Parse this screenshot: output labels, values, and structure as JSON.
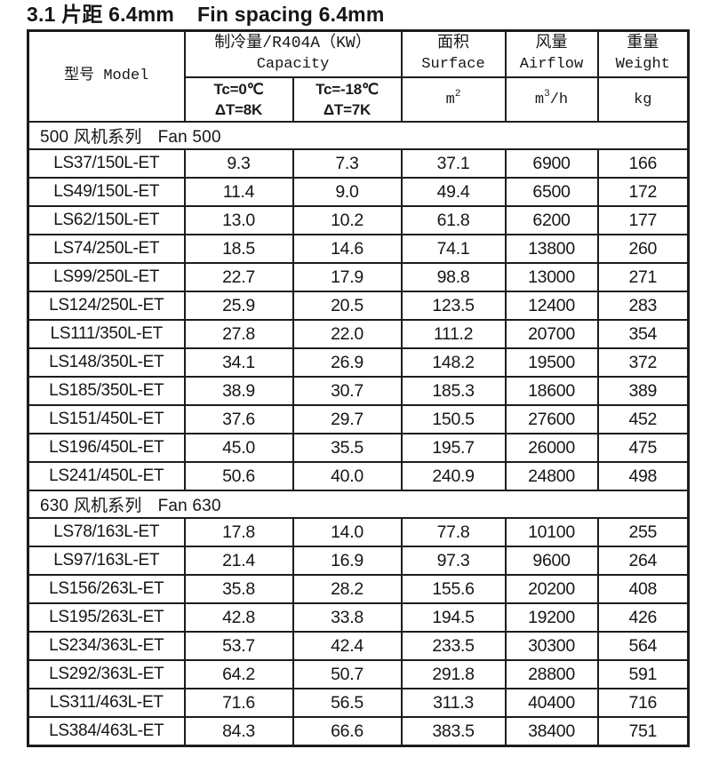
{
  "page": {
    "title_zh": "3.1 片距 6.4mm",
    "title_en": "Fin spacing 6.4mm"
  },
  "table": {
    "header": {
      "model": "型号 Model",
      "capacity_zh": "制冷量/R404A（KW）",
      "capacity_en": "Capacity",
      "cond1_line1": "Tc=0℃",
      "cond1_line2": "ΔT=8K",
      "cond2_line1": "Tc=-18℃",
      "cond2_line2": "ΔT=7K",
      "surface_zh": "面积",
      "surface_en": "Surface",
      "surface_unit_base": "m",
      "surface_unit_sup": "2",
      "airflow_zh": "风量",
      "airflow_en": "Airflow",
      "airflow_unit_base": "m",
      "airflow_unit_sup": "3",
      "airflow_unit_rest": "/h",
      "weight_zh": "重量",
      "weight_en": "Weight",
      "weight_unit": "kg"
    },
    "columns": [
      "型号 Model",
      "Tc=0℃ ΔT=8K",
      "Tc=-18℃ ΔT=7K",
      "面积 Surface m2",
      "风量 Airflow m3/h",
      "重量 Weight kg"
    ],
    "sections": [
      {
        "label_zh": "500 风机系列",
        "label_en": "Fan 500",
        "rows": [
          [
            "LS37/150L-ET",
            "9.3",
            "7.3",
            "37.1",
            "6900",
            "166"
          ],
          [
            "LS49/150L-ET",
            "11.4",
            "9.0",
            "49.4",
            "6500",
            "172"
          ],
          [
            "LS62/150L-ET",
            "13.0",
            "10.2",
            "61.8",
            "6200",
            "177"
          ],
          [
            "LS74/250L-ET",
            "18.5",
            "14.6",
            "74.1",
            "13800",
            "260"
          ],
          [
            "LS99/250L-ET",
            "22.7",
            "17.9",
            "98.8",
            "13000",
            "271"
          ],
          [
            "LS124/250L-ET",
            "25.9",
            "20.5",
            "123.5",
            "12400",
            "283"
          ],
          [
            "LS111/350L-ET",
            "27.8",
            "22.0",
            "111.2",
            "20700",
            "354"
          ],
          [
            "LS148/350L-ET",
            "34.1",
            "26.9",
            "148.2",
            "19500",
            "372"
          ],
          [
            "LS185/350L-ET",
            "38.9",
            "30.7",
            "185.3",
            "18600",
            "389"
          ],
          [
            "LS151/450L-ET",
            "37.6",
            "29.7",
            "150.5",
            "27600",
            "452"
          ],
          [
            "LS196/450L-ET",
            "45.0",
            "35.5",
            "195.7",
            "26000",
            "475"
          ],
          [
            "LS241/450L-ET",
            "50.6",
            "40.0",
            "240.9",
            "24800",
            "498"
          ]
        ]
      },
      {
        "label_zh": "630 风机系列",
        "label_en": "Fan 630",
        "rows": [
          [
            "LS78/163L-ET",
            "17.8",
            "14.0",
            "77.8",
            "10100",
            "255"
          ],
          [
            "LS97/163L-ET",
            "21.4",
            "16.9",
            "97.3",
            "9600",
            "264"
          ],
          [
            "LS156/263L-ET",
            "35.8",
            "28.2",
            "155.6",
            "20200",
            "408"
          ],
          [
            "LS195/263L-ET",
            "42.8",
            "33.8",
            "194.5",
            "19200",
            "426"
          ],
          [
            "LS234/363L-ET",
            "53.7",
            "42.4",
            "233.5",
            "30300",
            "564"
          ],
          [
            "LS292/363L-ET",
            "64.2",
            "50.7",
            "291.8",
            "28800",
            "591"
          ],
          [
            "LS311/463L-ET",
            "71.6",
            "56.5",
            "311.3",
            "40400",
            "716"
          ],
          [
            "LS384/463L-ET",
            "84.3",
            "66.6",
            "383.5",
            "38400",
            "751"
          ]
        ]
      }
    ]
  }
}
